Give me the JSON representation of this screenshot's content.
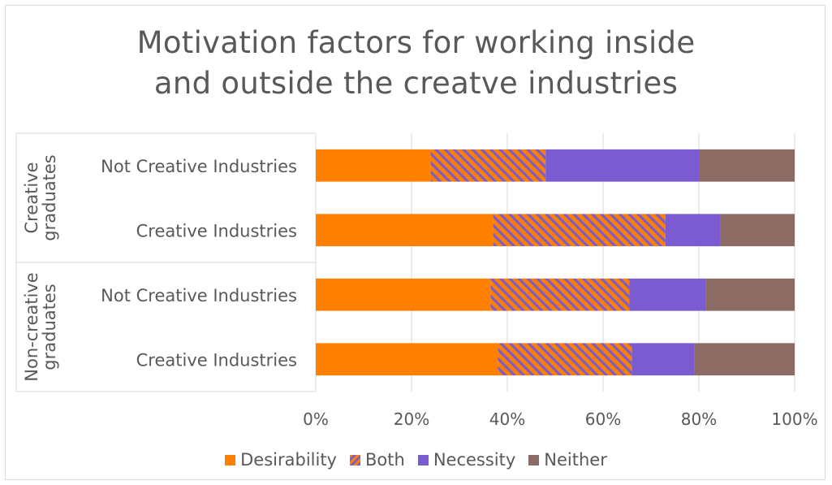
{
  "chart_data": {
    "type": "bar",
    "orientation": "horizontal",
    "stacked": "percent",
    "title": "Motivation factors for working inside\nand outside the creatve industries",
    "groups": [
      {
        "label": "Creative graduates",
        "label_lines": [
          "Creative",
          "graduates"
        ],
        "categories": [
          "Not Creative Industries",
          "Creative Industries"
        ]
      },
      {
        "label": "Non-creative graduates",
        "label_lines": [
          "Non-creative",
          "graduates"
        ],
        "categories": [
          "Not Creative Industries",
          "Creative Industries"
        ]
      }
    ],
    "series": [
      {
        "name": "Desirability",
        "color": "#ff8000",
        "pattern": "solid",
        "values": [
          24,
          37,
          36.5,
          38
        ]
      },
      {
        "name": "Both",
        "color": "#ff8000",
        "stripe_color": "#7a5bd0",
        "pattern": "diagonal-stripes",
        "values": [
          24,
          36,
          29,
          28
        ]
      },
      {
        "name": "Necessity",
        "color": "#7a5bd0",
        "pattern": "solid",
        "values": [
          32,
          11.5,
          16,
          13
        ]
      },
      {
        "name": "Neither",
        "color": "#8c6b64",
        "pattern": "solid",
        "values": [
          20,
          15.5,
          18.5,
          21
        ]
      }
    ],
    "xlim": [
      0,
      100
    ],
    "xticks": [
      "0%",
      "20%",
      "40%",
      "60%",
      "80%",
      "100%"
    ],
    "grid": true,
    "legend": "bottom"
  }
}
